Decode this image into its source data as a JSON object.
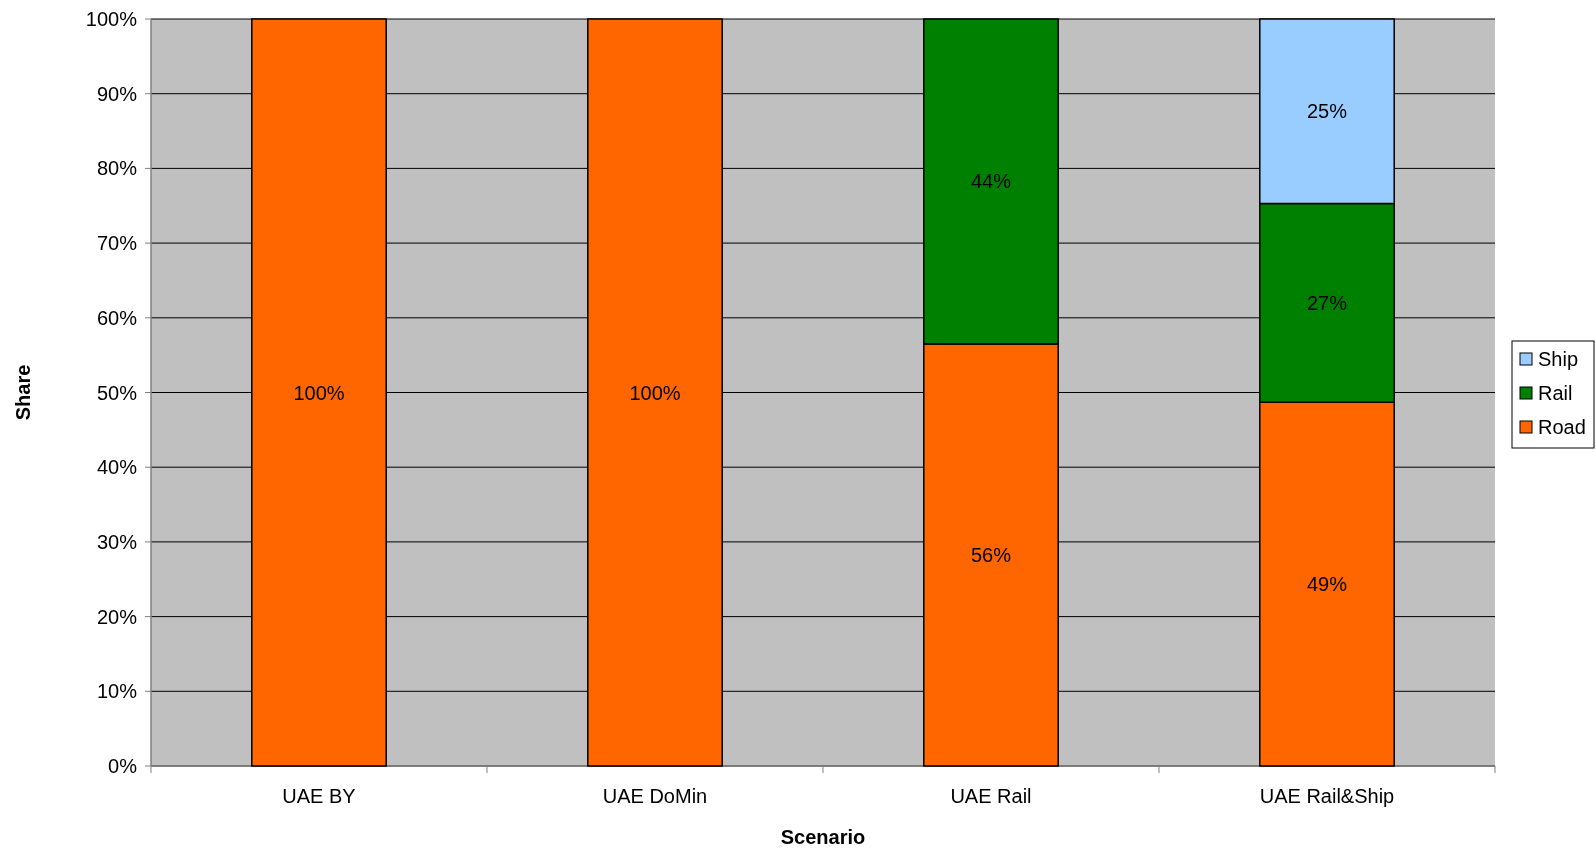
{
  "chart_data": {
    "type": "bar",
    "stacked": true,
    "xlabel": "Scenario",
    "ylabel": "Share",
    "categories": [
      "UAE BY",
      "UAE DoMin",
      "UAE Rail",
      "UAE Rail&Ship"
    ],
    "series": [
      {
        "name": "Road",
        "color": "#ff6600",
        "values": [
          100,
          100,
          56.5,
          48.7
        ],
        "value_labels": [
          "100%",
          "100%",
          "56%",
          "49%"
        ]
      },
      {
        "name": "Rail",
        "color": "#008000",
        "values": [
          null,
          null,
          43.5,
          26.6
        ],
        "value_labels": [
          null,
          null,
          "44%",
          "27%"
        ]
      },
      {
        "name": "Ship",
        "color": "#99ccff",
        "values": [
          null,
          null,
          null,
          24.7
        ],
        "value_labels": [
          null,
          null,
          null,
          "25%"
        ]
      }
    ],
    "ylim": [
      0,
      100
    ],
    "yticks": [
      {
        "value": 0,
        "label": "0%"
      },
      {
        "value": 10,
        "label": "10%"
      },
      {
        "value": 20,
        "label": "20%"
      },
      {
        "value": 30,
        "label": "30%"
      },
      {
        "value": 40,
        "label": "40%"
      },
      {
        "value": 50,
        "label": "50%"
      },
      {
        "value": 60,
        "label": "60%"
      },
      {
        "value": 70,
        "label": "70%"
      },
      {
        "value": 80,
        "label": "80%"
      },
      {
        "value": 90,
        "label": "90%"
      },
      {
        "value": 100,
        "label": "100%"
      }
    ],
    "grid": "y",
    "legend": "right"
  }
}
